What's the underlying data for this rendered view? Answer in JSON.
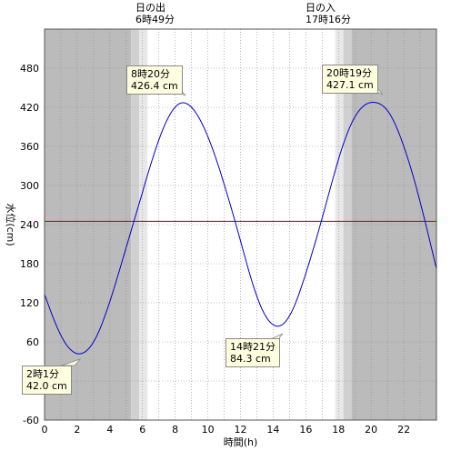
{
  "chart_data": {
    "type": "line",
    "xlabel": "時間(h)",
    "ylabel": "水位(cm)",
    "xlim": [
      0,
      24
    ],
    "ylim": [
      -60,
      540
    ],
    "x_ticks": [
      0,
      2,
      4,
      6,
      8,
      10,
      12,
      14,
      16,
      18,
      20,
      22
    ],
    "y_ticks": [
      -60,
      0,
      60,
      120,
      180,
      240,
      300,
      360,
      420,
      480
    ],
    "grid": true,
    "reference_line": 245,
    "reference_line_color": "#e00000",
    "series_color": "#0000cc",
    "series": [
      {
        "x": [
          0,
          1,
          2.017,
          3,
          4,
          5,
          6,
          7,
          8.333,
          9,
          10,
          11,
          12,
          13,
          14.35,
          15,
          16,
          17,
          18,
          19,
          20.317,
          21,
          22,
          23,
          24
        ],
        "values": [
          133,
          70,
          42.0,
          60,
          122,
          205,
          290,
          370,
          426.4,
          420,
          375,
          302,
          215,
          130,
          84.3,
          100,
          165,
          250,
          340,
          405,
          427.1,
          415,
          360,
          275,
          172
        ]
      }
    ],
    "extremes": [
      {
        "time": "2時1分",
        "level": "42.0 cm",
        "x": 2.017,
        "y": 42.0
      },
      {
        "time": "8時20分",
        "level": "426.4 cm",
        "x": 8.333,
        "y": 426.4
      },
      {
        "time": "14時21分",
        "level": "84.3 cm",
        "x": 14.35,
        "y": 84.3
      },
      {
        "time": "20時19分",
        "level": "427.1 cm",
        "x": 20.317,
        "y": 427.1
      }
    ],
    "sunrise": {
      "label": "日の出",
      "time": "6時49分",
      "x": 6.817
    },
    "sunset": {
      "label": "日の入",
      "time": "17時16分",
      "x": 17.267
    },
    "twilight": {
      "night_color": "#bbbbbb",
      "twilight_colors": [
        "#d0d0d0",
        "#e8e8e8"
      ],
      "morning": [
        5.3,
        5.8,
        6.3,
        6.817
      ],
      "evening": [
        17.267,
        17.8,
        18.3,
        18.8
      ]
    }
  }
}
